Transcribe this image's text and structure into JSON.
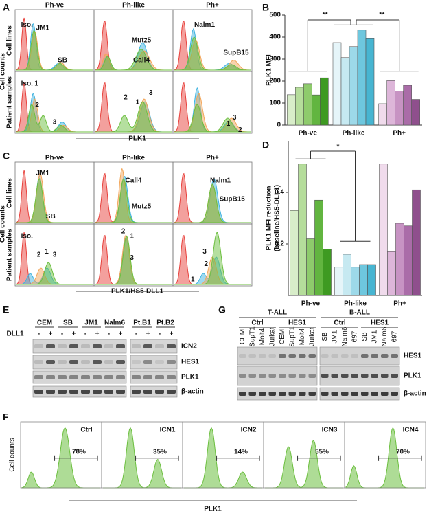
{
  "panel_labels": [
    "A",
    "B",
    "C",
    "D",
    "E",
    "F",
    "G"
  ],
  "flow_A": {
    "columns": [
      "Ph-ve",
      "Ph-like",
      "Ph+"
    ],
    "rows": [
      "Cell lines",
      "Patient samples"
    ],
    "y_label": "Cell counts",
    "x_label": "PLK1",
    "labels": [
      [
        [
          "Iso.",
          "JM1",
          "SB"
        ],
        [
          "Mutz5",
          "Call4"
        ],
        [
          "Nalm1",
          "SupB15"
        ]
      ],
      [
        [
          "Iso.",
          "1",
          "2",
          "3"
        ],
        [
          "2",
          "1",
          "3"
        ],
        [
          "3",
          "1",
          "2"
        ]
      ]
    ]
  },
  "flow_C": {
    "columns": [
      "Ph-ve",
      "Ph-like",
      "Ph+"
    ],
    "rows": [
      "Cell lines",
      "Patient samples"
    ],
    "y_label": "Cell counts",
    "x_label": "PLK1/HS5-DLL1",
    "labels": [
      [
        [
          "JM1",
          "SB"
        ],
        [
          "Call4",
          "Mutz5"
        ],
        [
          "Nalm1",
          "SupB15"
        ]
      ],
      [
        [
          "Iso.",
          "1",
          "2",
          "3"
        ],
        [
          "2",
          "1",
          "3"
        ],
        [
          "3",
          "2",
          "1"
        ]
      ]
    ]
  },
  "chart_data": [
    {
      "type": "bar",
      "y_label": "PLK1 MFI",
      "ylim": [
        0,
        500
      ],
      "yticks": [
        0,
        100,
        200,
        300,
        400,
        500
      ],
      "groups": [
        {
          "name": "Ph-ve",
          "values": [
            138,
            172,
            188,
            137,
            215
          ],
          "colors": [
            "#d8edc9",
            "#b5dd9b",
            "#8ecb6c",
            "#62b540",
            "#3e9a22"
          ]
        },
        {
          "name": "Ph-like",
          "values": [
            375,
            307,
            357,
            432,
            393
          ],
          "colors": [
            "#e6f5f9",
            "#c6e9f1",
            "#9dd9e9",
            "#6ec7de",
            "#47b5d1"
          ]
        },
        {
          "name": "Ph+",
          "values": [
            97,
            202,
            155,
            181,
            117
          ],
          "colors": [
            "#f0dbec",
            "#ddb6d9",
            "#c793c3",
            "#aa6ca8",
            "#8f4f8d"
          ]
        }
      ],
      "significance": [
        "**",
        "**"
      ]
    },
    {
      "type": "bar",
      "y_label": [
        "PLK1 MFI reduction",
        "(baseline/HS5-DLL1)"
      ],
      "ylim": [
        0,
        0.6
      ],
      "yticks": [
        0.2,
        0.4
      ],
      "groups": [
        {
          "name": "Ph-ve",
          "values": [
            0.33,
            0.51,
            0.22,
            0.37,
            0.18
          ],
          "colors": [
            "#d8edc9",
            "#b5dd9b",
            "#8ecb6c",
            "#62b540",
            "#3e9a22"
          ]
        },
        {
          "name": "Ph-like",
          "values": [
            0.11,
            0.16,
            0.11,
            0.12,
            0.12
          ],
          "colors": [
            "#e6f5f9",
            "#c6e9f1",
            "#9dd9e9",
            "#6ec7de",
            "#47b5d1"
          ]
        },
        {
          "name": "Ph+",
          "values": [
            0.51,
            0.17,
            0.28,
            0.27,
            0.41
          ],
          "colors": [
            "#f0dbec",
            "#ddb6d9",
            "#c793c3",
            "#aa6ca8",
            "#8f4f8d"
          ]
        }
      ],
      "significance": [
        "*"
      ]
    }
  ],
  "blot_E": {
    "samples": [
      "CEM",
      "SB",
      "JM1",
      "Nalm6",
      "Pt.B1",
      "Pt.B2"
    ],
    "treatment": "DLL1",
    "lanes": [
      "-",
      "+",
      "-",
      "+",
      "-",
      "+",
      "-",
      "+",
      "-",
      "+",
      "-",
      "+"
    ],
    "proteins": [
      "ICN2",
      "HES1",
      "PLK1",
      "β-actin"
    ]
  },
  "blot_G": {
    "groups": [
      "T-ALL",
      "B-ALL"
    ],
    "conditions": [
      "Ctrl",
      "HES1",
      "Ctrl",
      "HES1"
    ],
    "lanes": [
      "CEM",
      "SupT1",
      "Molt4",
      "Jurkat",
      "CEM",
      "SupT1",
      "Molt4",
      "Jurkat",
      "SB",
      "JM1",
      "Nalm6",
      "697",
      "SB",
      "JM1",
      "Nalm6",
      "697"
    ],
    "proteins": [
      "HES1",
      "PLK1",
      "β-actin"
    ]
  },
  "flow_F": {
    "panels": [
      {
        "label": "Ctrl",
        "percent": "78%"
      },
      {
        "label": "ICN1",
        "percent": "35%"
      },
      {
        "label": "ICN2",
        "percent": "14%"
      },
      {
        "label": "ICN3",
        "percent": "55%"
      },
      {
        "label": "ICN4",
        "percent": "70%"
      }
    ],
    "y_label": "Cell counts",
    "x_label": "PLK1"
  }
}
